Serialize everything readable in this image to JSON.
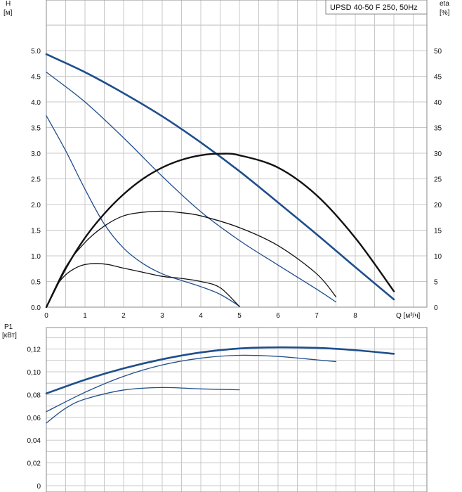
{
  "colors": {
    "pump_curve": "#1f4e8c",
    "efficiency_curve": "#111111",
    "grid": "#c8c8c8",
    "frame": "#8a8a8a"
  },
  "chart_data": [
    {
      "type": "line",
      "title": "",
      "legend": {
        "label": "UPSD 40-50 F 250, 50Hz",
        "placement": "top-right"
      },
      "xlabel": "Q [м³/ч]",
      "ylabel": {
        "name": "H",
        "unit": "[м]"
      },
      "y2label": {
        "name": "eta",
        "unit": "[%]"
      },
      "xlim": [
        0,
        10
      ],
      "ylim": [
        0,
        6
      ],
      "y2lim": [
        0,
        60
      ],
      "grid": true,
      "x_ticks": [
        "0",
        "1",
        "2",
        "3",
        "4",
        "5",
        "6",
        "7",
        "8"
      ],
      "y_ticks": [
        "0.0",
        "0.5",
        "1.0",
        "1.5",
        "2.0",
        "2.5",
        "3.0",
        "3.5",
        "4.0",
        "4.5",
        "5.0"
      ],
      "y2_ticks": [
        "0",
        "5",
        "10",
        "15",
        "20",
        "25",
        "30",
        "35",
        "40",
        "45",
        "50"
      ],
      "series": [
        {
          "kind": "head",
          "weight": "bold",
          "x": [
            0,
            1,
            2,
            3,
            4,
            5,
            6,
            7,
            8,
            9
          ],
          "y": [
            4.93,
            4.58,
            4.17,
            3.72,
            3.21,
            2.65,
            2.04,
            1.42,
            0.78,
            0.15
          ]
        },
        {
          "kind": "head",
          "weight": "thin",
          "x": [
            0,
            1,
            2,
            3,
            4,
            5,
            6,
            7,
            7.5
          ],
          "y": [
            4.58,
            4.0,
            3.3,
            2.55,
            1.86,
            1.3,
            0.82,
            0.35,
            0.1
          ]
        },
        {
          "kind": "head",
          "weight": "thin",
          "x": [
            0,
            0.5,
            1,
            1.5,
            2,
            2.5,
            3,
            3.5,
            4,
            4.5,
            5
          ],
          "y": [
            3.73,
            3.05,
            2.3,
            1.62,
            1.15,
            0.85,
            0.65,
            0.52,
            0.4,
            0.25,
            0.02
          ]
        },
        {
          "kind": "eta",
          "weight": "bold",
          "x": [
            0,
            0.5,
            1,
            1.5,
            2,
            2.5,
            3,
            3.5,
            4,
            4.5,
            5,
            6,
            7,
            8,
            9
          ],
          "y": [
            0,
            7.5,
            13.5,
            18.2,
            22.0,
            25.0,
            27.2,
            28.7,
            29.6,
            29.9,
            29.6,
            27.2,
            21.8,
            13.5,
            3.1
          ]
        },
        {
          "kind": "eta",
          "weight": "thin",
          "x": [
            0,
            0.5,
            1,
            1.5,
            2,
            2.5,
            3,
            3.5,
            4,
            5,
            6,
            7,
            7.5
          ],
          "y": [
            0,
            7.8,
            12.6,
            15.8,
            17.8,
            18.5,
            18.7,
            18.4,
            17.8,
            15.5,
            12.0,
            6.5,
            2.0
          ]
        },
        {
          "kind": "eta",
          "weight": "thin",
          "x": [
            0,
            0.25,
            0.5,
            0.75,
            1,
            1.3,
            1.6,
            2,
            2.5,
            3,
            3.5,
            4,
            4.5,
            5
          ],
          "y": [
            0,
            4.0,
            6.3,
            7.6,
            8.3,
            8.5,
            8.3,
            7.6,
            6.8,
            6.0,
            5.6,
            5.0,
            3.8,
            0.1
          ]
        }
      ]
    },
    {
      "type": "line",
      "title": "",
      "xlabel": "",
      "ylabel": {
        "name": "P1",
        "unit": "[кВт]"
      },
      "xlim": [
        0,
        10
      ],
      "ylim": [
        0,
        0.14
      ],
      "grid": true,
      "y_ticks": [
        "0",
        "0,02",
        "0,04",
        "0,06",
        "0,08",
        "0,10",
        "0,12"
      ],
      "series": [
        {
          "weight": "bold",
          "x": [
            0,
            1,
            2,
            3,
            4,
            5,
            6,
            7,
            8,
            9
          ],
          "y": [
            0.081,
            0.093,
            0.103,
            0.111,
            0.117,
            0.1205,
            0.1215,
            0.121,
            0.119,
            0.1158
          ]
        },
        {
          "weight": "thin",
          "x": [
            0,
            1,
            2,
            3,
            4,
            5,
            6,
            7,
            7.5
          ],
          "y": [
            0.065,
            0.082,
            0.096,
            0.106,
            0.112,
            0.1145,
            0.1135,
            0.1105,
            0.109
          ]
        },
        {
          "weight": "thin",
          "x": [
            0,
            0.5,
            1,
            2,
            3,
            4,
            5
          ],
          "y": [
            0.055,
            0.068,
            0.076,
            0.084,
            0.0862,
            0.085,
            0.0842
          ]
        }
      ]
    }
  ]
}
